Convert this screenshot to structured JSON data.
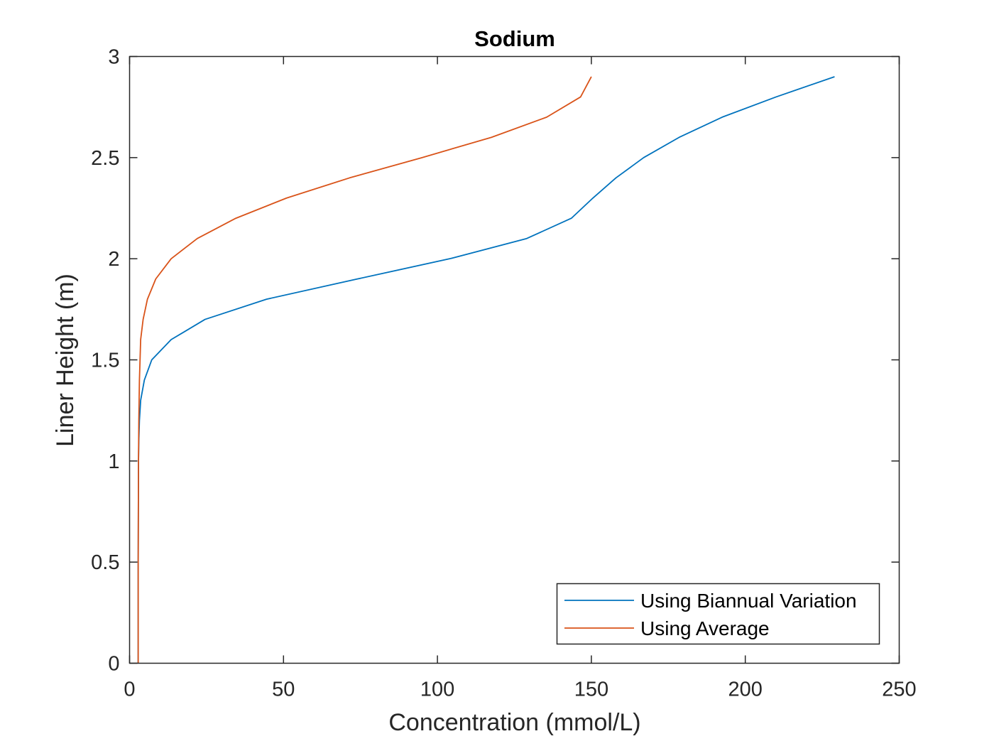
{
  "chart_data": {
    "type": "line",
    "title": "Sodium",
    "xlabel": "Concentration (mmol/L)",
    "ylabel": "Liner Height (m)",
    "xlim": [
      0,
      250
    ],
    "ylim": [
      0,
      3
    ],
    "xticks": [
      "0",
      "50",
      "100",
      "150",
      "200",
      "250"
    ],
    "yticks": [
      "0",
      "0.5",
      "1",
      "1.5",
      "2",
      "2.5",
      "3"
    ],
    "grid": false,
    "legend_position": "bottom-right",
    "series": [
      {
        "name": "Using Biannual Variation",
        "color": "#0072BD",
        "points": [
          [
            2.8,
            0
          ],
          [
            2.8,
            0.5
          ],
          [
            2.9,
            1.0
          ],
          [
            3.0,
            1.1
          ],
          [
            3.2,
            1.2
          ],
          [
            3.6,
            1.3
          ],
          [
            4.8,
            1.4
          ],
          [
            7.2,
            1.5
          ],
          [
            13.5,
            1.6
          ],
          [
            24.5,
            1.7
          ],
          [
            44.5,
            1.8
          ],
          [
            74,
            1.9
          ],
          [
            104,
            2.0
          ],
          [
            129,
            2.1
          ],
          [
            143.5,
            2.2
          ],
          [
            150.5,
            2.3
          ],
          [
            158,
            2.4
          ],
          [
            167,
            2.5
          ],
          [
            178.5,
            2.6
          ],
          [
            192.5,
            2.7
          ],
          [
            210,
            2.8
          ],
          [
            229,
            2.9
          ]
        ]
      },
      {
        "name": "Using Average",
        "color": "#D95319",
        "points": [
          [
            2.8,
            0
          ],
          [
            2.8,
            0.5
          ],
          [
            2.9,
            1.0
          ],
          [
            3.0,
            1.2
          ],
          [
            3.2,
            1.4
          ],
          [
            3.6,
            1.6
          ],
          [
            4.4,
            1.7
          ],
          [
            5.8,
            1.8
          ],
          [
            8.5,
            1.9
          ],
          [
            13.5,
            2.0
          ],
          [
            22,
            2.1
          ],
          [
            34.5,
            2.2
          ],
          [
            51,
            2.3
          ],
          [
            71.5,
            2.4
          ],
          [
            95,
            2.5
          ],
          [
            117.5,
            2.6
          ],
          [
            135.5,
            2.7
          ],
          [
            146.5,
            2.8
          ],
          [
            150,
            2.9
          ]
        ]
      }
    ]
  }
}
